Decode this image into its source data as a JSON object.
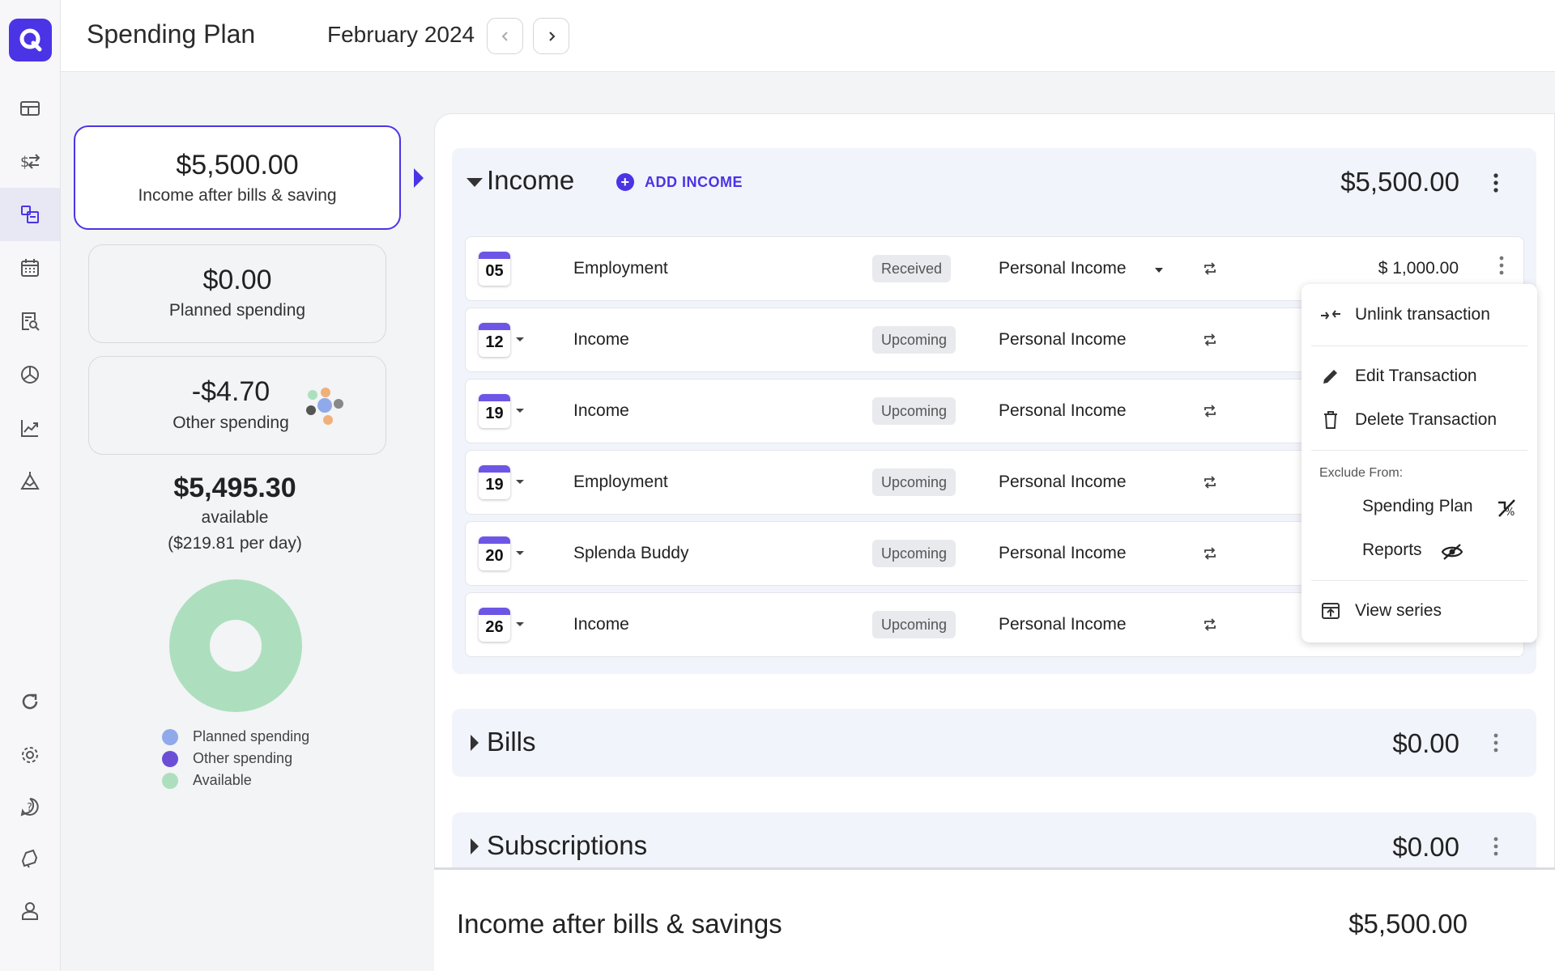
{
  "header": {
    "title": "Spending Plan",
    "month": "February 2024"
  },
  "nav": {
    "items": [
      "dashboard-icon",
      "transactions-icon",
      "spending-plan-icon",
      "calendar-icon",
      "reports-search-icon",
      "investments-icon",
      "trends-icon",
      "net-worth-icon",
      "refresh-icon",
      "settings-icon",
      "help-icon",
      "notifications-icon",
      "profile-icon"
    ],
    "active": "spending-plan-icon"
  },
  "summary": {
    "income_after": {
      "amount": "$5,500.00",
      "label": "Income after bills & saving"
    },
    "planned": {
      "amount": "$0.00",
      "label": "Planned spending"
    },
    "other": {
      "amount": "-$4.70",
      "label": "Other spending"
    },
    "available_amount": "$5,495.30",
    "available_label": "available",
    "per_day": "($219.81 per day)",
    "legend": [
      {
        "label": "Planned spending",
        "color": "#8fa9ea"
      },
      {
        "label": "Other spending",
        "color": "#6a4fd6"
      },
      {
        "label": "Available",
        "color": "#addfbe"
      }
    ]
  },
  "income": {
    "title": "Income",
    "add_label": "ADD INCOME",
    "total": "$5,500.00",
    "rows": [
      {
        "day": "05",
        "name": "Employment",
        "status": "Received",
        "category": "Personal Income",
        "amount": "$ 1,000.00"
      },
      {
        "day": "12",
        "name": "Income",
        "status": "Upcoming",
        "category": "Personal Income",
        "amount": ""
      },
      {
        "day": "19",
        "name": "Income",
        "status": "Upcoming",
        "category": "Personal Income",
        "amount": ""
      },
      {
        "day": "19",
        "name": "Employment",
        "status": "Upcoming",
        "category": "Personal Income",
        "amount": ""
      },
      {
        "day": "20",
        "name": "Splenda Buddy",
        "status": "Upcoming",
        "category": "Personal Income",
        "amount": ""
      },
      {
        "day": "26",
        "name": "Income",
        "status": "Upcoming",
        "category": "Personal Income",
        "amount": ""
      }
    ]
  },
  "bills": {
    "title": "Bills",
    "total": "$0.00"
  },
  "subscriptions": {
    "title": "Subscriptions",
    "total": "$0.00"
  },
  "context_menu": {
    "unlink": "Unlink transaction",
    "edit": "Edit Transaction",
    "delete": "Delete Transaction",
    "exclude_heading": "Exclude From:",
    "exclude_spending_plan": "Spending Plan",
    "exclude_reports": "Reports",
    "view_series": "View series"
  },
  "footer": {
    "label": "Income after bills & savings",
    "amount": "$5,500.00"
  },
  "colors": {
    "accent": "#4a34e6",
    "section_bg": "#f1f4fa",
    "available": "#addfbe"
  }
}
